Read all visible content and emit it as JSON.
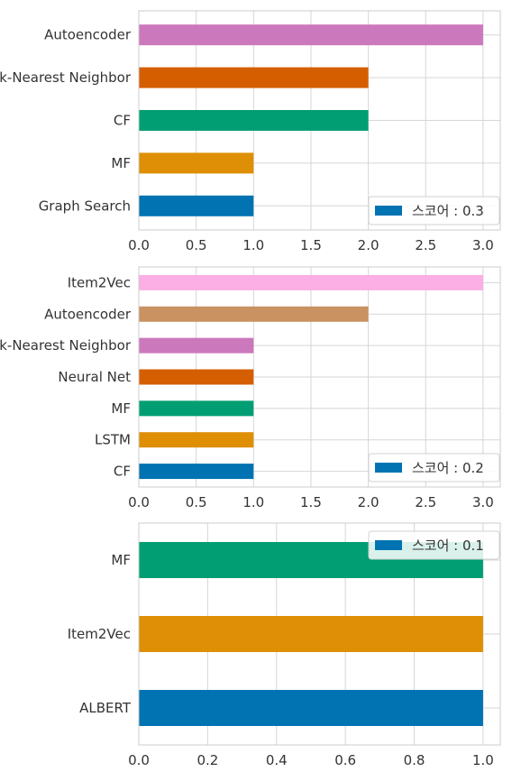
{
  "chart_data": [
    {
      "type": "bar",
      "orientation": "horizontal",
      "categories": [
        "Graph Search",
        "MF",
        "CF",
        "k-Nearest Neighbor",
        "Autoencoder"
      ],
      "values": [
        1,
        1,
        2,
        2,
        3
      ],
      "colors": [
        "#0173b2",
        "#de8f05",
        "#029e73",
        "#d55e00",
        "#cc78bc"
      ],
      "xlim": [
        0,
        3.15
      ],
      "xticks": [
        "0.0",
        "0.5",
        "1.0",
        "1.5",
        "2.0",
        "2.5",
        "3.0"
      ],
      "xtick_values": [
        0,
        0.5,
        1,
        1.5,
        2,
        2.5,
        3
      ],
      "grid": true,
      "legend": {
        "label": "스코어 : 0.3",
        "color": "#0173b2",
        "position": "lower-right"
      }
    },
    {
      "type": "bar",
      "orientation": "horizontal",
      "categories": [
        "CF",
        "LSTM",
        "MF",
        "Neural Net",
        "k-Nearest Neighbor",
        "Autoencoder",
        "Item2Vec"
      ],
      "values": [
        1,
        1,
        1,
        1,
        1,
        2,
        3
      ],
      "colors": [
        "#0173b2",
        "#de8f05",
        "#029e73",
        "#d55e00",
        "#cc78bc",
        "#ca9161",
        "#fbafe4"
      ],
      "xlim": [
        0,
        3.15
      ],
      "xticks": [
        "0.0",
        "0.5",
        "1.0",
        "1.5",
        "2.0",
        "2.5",
        "3.0"
      ],
      "xtick_values": [
        0,
        0.5,
        1,
        1.5,
        2,
        2.5,
        3
      ],
      "grid": true,
      "legend": {
        "label": "스코어 : 0.2",
        "color": "#0173b2",
        "position": "lower-right"
      }
    },
    {
      "type": "bar",
      "orientation": "horizontal",
      "categories": [
        "ALBERT",
        "Item2Vec",
        "MF"
      ],
      "values": [
        1,
        1,
        1
      ],
      "colors": [
        "#0173b2",
        "#de8f05",
        "#029e73"
      ],
      "xlim": [
        0,
        1.05
      ],
      "xticks": [
        "0.0",
        "0.2",
        "0.4",
        "0.6",
        "0.8",
        "1.0"
      ],
      "xtick_values": [
        0,
        0.2,
        0.4,
        0.6,
        0.8,
        1.0
      ],
      "grid": true,
      "legend": {
        "label": "스코어 : 0.1",
        "color": "#0173b2",
        "position": "upper-right"
      }
    }
  ]
}
